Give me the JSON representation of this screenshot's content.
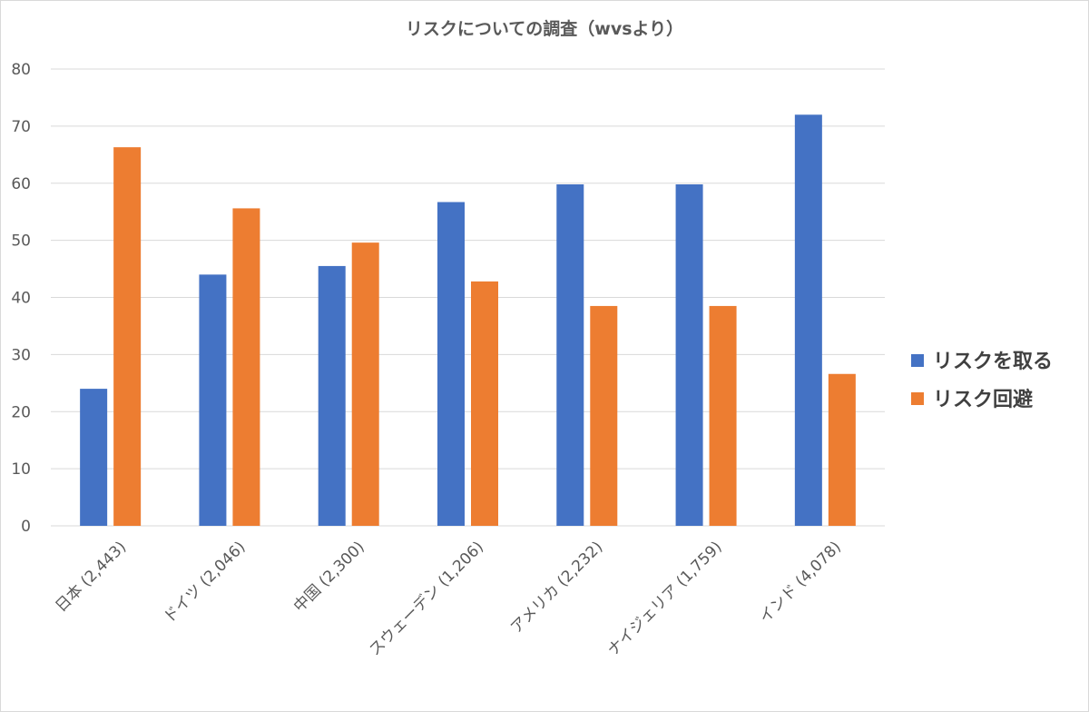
{
  "chart_data": {
    "type": "bar",
    "title": "リスクについての調査（wvsより）",
    "xlabel": "",
    "ylabel": "",
    "ylim": [
      0,
      80
    ],
    "yticks": [
      0,
      10,
      20,
      30,
      40,
      50,
      60,
      70,
      80
    ],
    "grid": true,
    "legend_position": "right",
    "categories": [
      "日本 (2,443)",
      "ドイツ (2,046)",
      "中国 (2,300)",
      "スウェーデン (1,206)",
      "アメリカ (2,232)",
      "ナイジェリア (1,759)",
      "インド (4,078)"
    ],
    "series": [
      {
        "name": "リスクを取る",
        "color": "#4472c4",
        "values": [
          24,
          44,
          45.5,
          56.7,
          59.8,
          59.8,
          72
        ]
      },
      {
        "name": "リスク回避",
        "color": "#ed7d31",
        "values": [
          66.3,
          55.6,
          49.6,
          42.8,
          38.5,
          38.5,
          26.6
        ]
      }
    ]
  }
}
